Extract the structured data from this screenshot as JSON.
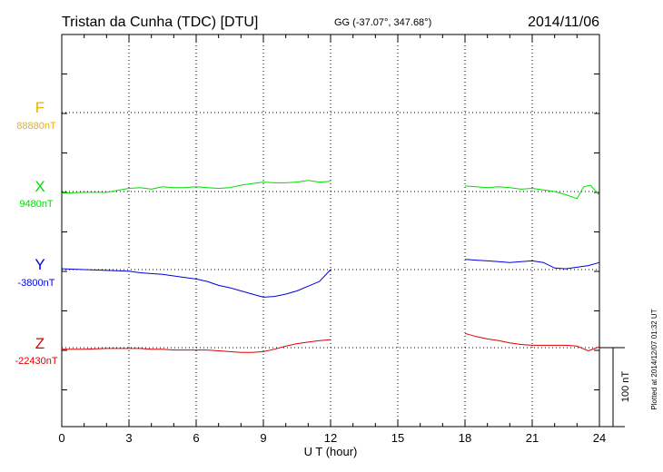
{
  "header": {
    "station": "Tristan da Cunha (TDC)  [DTU]",
    "coords": "GG (-37.07°, 347.68°)",
    "date": "2014/11/06"
  },
  "footer": {
    "plotted_at": "Plotted at 2014/12/07 01:32 UT"
  },
  "chart_data": {
    "type": "line",
    "xlabel": "U T (hour)",
    "xlim": [
      0,
      24
    ],
    "xticks": [
      "0",
      "3",
      "6",
      "9",
      "12",
      "15",
      "18",
      "21",
      "24"
    ],
    "scale_bar": "100 nT",
    "grid": true,
    "gap_hours": [
      12,
      18
    ],
    "series": [
      {
        "name": "F",
        "baseline": "88880nT",
        "color": "#f0b000",
        "x": [
          0,
          24
        ],
        "y": [
          72,
          72
        ]
      },
      {
        "name": "X",
        "baseline": "9480nT",
        "color": "#00dd00",
        "x": [
          0,
          1,
          2,
          3,
          3.5,
          4,
          4.5,
          5,
          5.5,
          6,
          6.5,
          7,
          7.5,
          8,
          8.5,
          9,
          9.5,
          10,
          10.5,
          11,
          11.5,
          12,
          18,
          18.5,
          19,
          19.5,
          20,
          20.5,
          21,
          21.5,
          22,
          22.5,
          23,
          23.3,
          23.6,
          24
        ],
        "y": [
          -2,
          -1,
          -1,
          4,
          5,
          3,
          6,
          5,
          5,
          6,
          5,
          4,
          5,
          8,
          10,
          12,
          11,
          11,
          12,
          14,
          12,
          13,
          7,
          6,
          5,
          6,
          5,
          3,
          4,
          2,
          0,
          -4,
          -9,
          6,
          8,
          -5
        ]
      },
      {
        "name": "Y",
        "baseline": "-3800nT",
        "color": "#0000dd",
        "x": [
          0,
          1,
          2,
          3,
          3.5,
          4,
          4.5,
          5,
          5.5,
          6,
          6.5,
          7,
          7.5,
          8,
          8.5,
          9,
          9.5,
          10,
          10.5,
          11,
          11.5,
          12,
          18,
          18.5,
          19,
          19.5,
          20,
          20.5,
          21,
          21.5,
          22,
          22.5,
          23,
          23.5,
          24
        ],
        "y": [
          1,
          0,
          -1,
          -2,
          -4,
          -5,
          -6,
          -8,
          -10,
          -12,
          -15,
          -20,
          -23,
          -27,
          -31,
          -35,
          -34,
          -31,
          -27,
          -21,
          -15,
          0,
          13,
          12,
          11,
          10,
          9,
          10,
          11,
          9,
          2,
          1,
          3,
          5,
          9
        ]
      },
      {
        "name": "Z",
        "baseline": "-22430nT",
        "color": "#dd0000",
        "x": [
          0,
          1,
          2,
          3,
          3.5,
          4,
          4.5,
          5,
          5.5,
          6,
          6.5,
          7,
          7.5,
          8,
          8.5,
          9,
          9.5,
          10,
          10.5,
          11,
          11.5,
          12,
          18,
          18.5,
          19,
          19.5,
          20,
          20.5,
          21,
          21.5,
          22,
          22.5,
          23,
          23.5,
          24
        ],
        "y": [
          -2,
          -2,
          -1,
          -1,
          -1,
          -2,
          -2,
          -3,
          -3,
          -3,
          -3,
          -4,
          -5,
          -6,
          -6,
          -5,
          -2,
          2,
          5,
          7,
          9,
          10,
          18,
          14,
          11,
          9,
          6,
          4,
          3,
          3,
          3,
          3,
          2,
          -4,
          1
        ]
      }
    ]
  }
}
